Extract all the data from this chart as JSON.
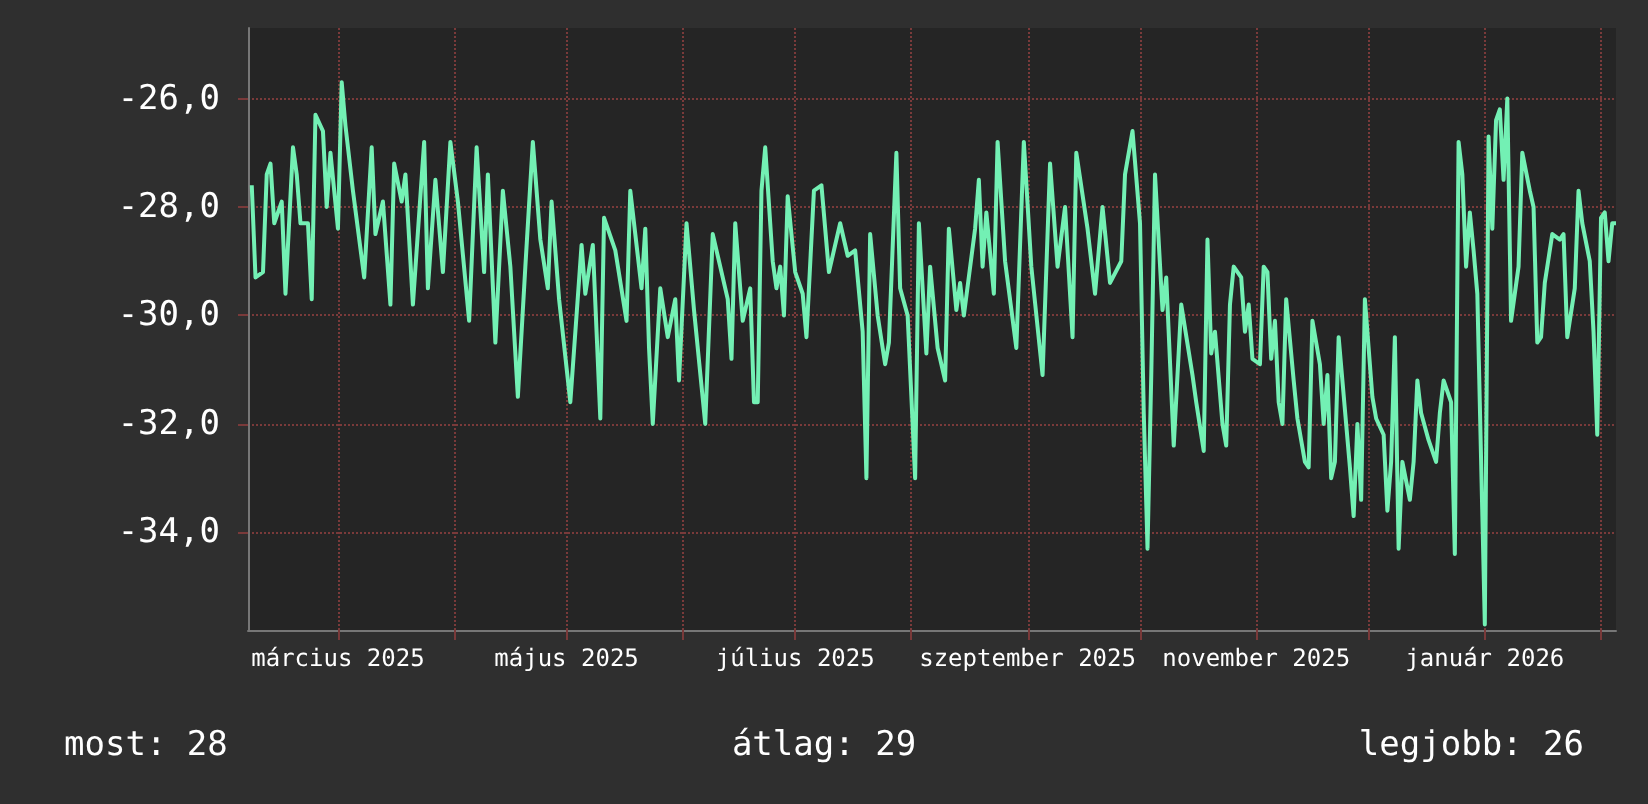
{
  "chart_data": {
    "type": "line",
    "x": [
      "2025-02-06",
      "2025-02-07",
      "2025-02-09",
      "2025-02-10",
      "2025-02-11",
      "2025-02-12",
      "2025-02-14",
      "2025-02-15",
      "2025-02-17",
      "2025-02-18",
      "2025-02-19",
      "2025-02-21",
      "2025-02-22",
      "2025-02-23",
      "2025-02-25",
      "2025-02-26",
      "2025-02-27",
      "2025-03-01",
      "2025-03-02",
      "2025-03-03",
      "2025-03-05",
      "2025-03-08",
      "2025-03-10",
      "2025-03-11",
      "2025-03-13",
      "2025-03-15",
      "2025-03-16",
      "2025-03-18",
      "2025-03-19",
      "2025-03-21",
      "2025-03-24",
      "2025-03-25",
      "2025-03-27",
      "2025-03-29",
      "2025-03-31",
      "2025-04-02",
      "2025-04-05",
      "2025-04-07",
      "2025-04-09",
      "2025-04-10",
      "2025-04-12",
      "2025-04-14",
      "2025-04-16",
      "2025-04-18",
      "2025-04-20",
      "2025-04-22",
      "2025-04-24",
      "2025-04-26",
      "2025-04-27",
      "2025-04-29",
      "2025-05-02",
      "2025-05-05",
      "2025-05-06",
      "2025-05-08",
      "2025-05-10",
      "2025-05-11",
      "2025-05-14",
      "2025-05-17",
      "2025-05-18",
      "2025-05-21",
      "2025-05-22",
      "2025-05-23",
      "2025-05-24",
      "2025-05-26",
      "2025-05-28",
      "2025-05-30",
      "2025-05-31",
      "2025-06-02",
      "2025-06-04",
      "2025-06-07",
      "2025-06-09",
      "2025-06-13",
      "2025-06-14",
      "2025-06-15",
      "2025-06-17",
      "2025-06-19",
      "2025-06-20",
      "2025-06-21",
      "2025-06-22",
      "2025-06-23",
      "2025-06-25",
      "2025-06-26",
      "2025-06-27",
      "2025-06-28",
      "2025-06-29",
      "2025-07-01",
      "2025-07-03",
      "2025-07-04",
      "2025-07-06",
      "2025-07-08",
      "2025-07-10",
      "2025-07-13",
      "2025-07-15",
      "2025-07-17",
      "2025-07-19",
      "2025-07-20",
      "2025-07-21",
      "2025-07-23",
      "2025-07-25",
      "2025-07-26",
      "2025-07-28",
      "2025-07-29",
      "2025-07-31",
      "2025-08-02",
      "2025-08-03",
      "2025-08-05",
      "2025-08-06",
      "2025-08-08",
      "2025-08-10",
      "2025-08-11",
      "2025-08-13",
      "2025-08-14",
      "2025-08-15",
      "2025-08-18",
      "2025-08-19",
      "2025-08-20",
      "2025-08-21",
      "2025-08-23",
      "2025-08-24",
      "2025-08-26",
      "2025-08-29",
      "2025-08-31",
      "2025-09-02",
      "2025-09-05",
      "2025-09-07",
      "2025-09-09",
      "2025-09-11",
      "2025-09-13",
      "2025-09-14",
      "2025-09-17",
      "2025-09-19",
      "2025-09-21",
      "2025-09-23",
      "2025-09-26",
      "2025-09-27",
      "2025-09-29",
      "2025-10-01",
      "2025-10-02",
      "2025-10-03",
      "2025-10-04",
      "2025-10-05",
      "2025-10-07",
      "2025-10-08",
      "2025-10-10",
      "2025-10-12",
      "2025-10-15",
      "2025-10-16",
      "2025-10-18",
      "2025-10-19",
      "2025-10-20",
      "2025-10-21",
      "2025-10-23",
      "2025-10-24",
      "2025-10-25",
      "2025-10-26",
      "2025-10-28",
      "2025-10-29",
      "2025-10-30",
      "2025-10-31",
      "2025-11-02",
      "2025-11-03",
      "2025-11-04",
      "2025-11-05",
      "2025-11-06",
      "2025-11-07",
      "2025-11-08",
      "2025-11-09",
      "2025-11-11",
      "2025-11-12",
      "2025-11-14",
      "2025-11-15",
      "2025-11-16",
      "2025-11-18",
      "2025-11-19",
      "2025-11-20",
      "2025-11-21",
      "2025-11-22",
      "2025-11-23",
      "2025-11-25",
      "2025-11-26",
      "2025-11-27",
      "2025-11-28",
      "2025-11-29",
      "2025-11-30",
      "2025-12-02",
      "2025-12-03",
      "2025-12-05",
      "2025-12-06",
      "2025-12-07",
      "2025-12-08",
      "2025-12-09",
      "2025-12-10",
      "2025-12-12",
      "2025-12-13",
      "2025-12-14",
      "2025-12-15",
      "2025-12-17",
      "2025-12-19",
      "2025-12-20",
      "2025-12-21",
      "2025-12-23",
      "2025-12-24",
      "2025-12-25",
      "2025-12-26",
      "2025-12-27",
      "2025-12-28",
      "2025-12-29",
      "2025-12-30",
      "2026-01-01",
      "2026-01-02",
      "2026-01-03",
      "2026-01-04",
      "2026-01-05",
      "2026-01-06",
      "2026-01-07",
      "2026-01-08",
      "2026-01-10",
      "2026-01-11",
      "2026-01-13",
      "2026-01-14",
      "2026-01-15",
      "2026-01-16",
      "2026-01-17",
      "2026-01-19",
      "2026-01-21",
      "2026-01-22",
      "2026-01-23",
      "2026-01-25",
      "2026-01-26",
      "2026-01-27",
      "2026-01-29",
      "2026-01-30",
      "2026-01-31",
      "2026-02-01",
      "2026-02-02",
      "2026-02-03",
      "2026-02-04",
      "2026-02-05"
    ],
    "values": [
      -27.6,
      -29.3,
      -29.2,
      -27.4,
      -27.2,
      -28.3,
      -27.9,
      -29.6,
      -26.9,
      -27.4,
      -28.3,
      -28.3,
      -29.7,
      -26.3,
      -26.6,
      -28.0,
      -27.0,
      -28.4,
      -25.7,
      -26.5,
      -27.7,
      -29.3,
      -26.9,
      -28.5,
      -27.9,
      -29.8,
      -27.2,
      -27.9,
      -27.4,
      -29.8,
      -26.8,
      -29.5,
      -27.5,
      -29.2,
      -26.8,
      -27.9,
      -30.1,
      -26.9,
      -29.2,
      -27.4,
      -30.5,
      -27.7,
      -29.1,
      -31.5,
      -29.1,
      -26.8,
      -28.6,
      -29.5,
      -27.9,
      -29.7,
      -31.6,
      -28.7,
      -29.6,
      -28.7,
      -31.9,
      -28.2,
      -28.8,
      -30.1,
      -27.7,
      -29.5,
      -28.4,
      -30.6,
      -32.0,
      -29.5,
      -30.4,
      -29.7,
      -31.2,
      -28.3,
      -29.9,
      -32.0,
      -28.5,
      -29.7,
      -30.8,
      -28.3,
      -30.1,
      -29.5,
      -31.6,
      -31.6,
      -27.7,
      -26.9,
      -29.0,
      -29.5,
      -29.1,
      -30.0,
      -27.8,
      -29.2,
      -29.6,
      -30.4,
      -27.7,
      -27.6,
      -29.2,
      -28.3,
      -28.9,
      -28.8,
      -30.3,
      -33.0,
      -28.5,
      -30.0,
      -30.9,
      -30.5,
      -27.0,
      -29.5,
      -30.0,
      -33.0,
      -28.3,
      -30.7,
      -29.1,
      -30.6,
      -31.2,
      -28.4,
      -29.9,
      -29.4,
      -30.0,
      -28.4,
      -27.5,
      -29.1,
      -28.1,
      -29.6,
      -26.8,
      -29.0,
      -30.6,
      -26.8,
      -29.1,
      -31.1,
      -27.2,
      -29.1,
      -28.0,
      -30.4,
      -27.0,
      -28.4,
      -29.6,
      -28.0,
      -29.4,
      -29.0,
      -27.4,
      -26.6,
      -28.3,
      -31.8,
      -34.3,
      -31.1,
      -27.4,
      -29.9,
      -29.3,
      -32.4,
      -29.8,
      -31.1,
      -31.6,
      -32.5,
      -28.6,
      -30.7,
      -30.3,
      -32.0,
      -32.4,
      -29.8,
      -29.1,
      -29.3,
      -30.3,
      -29.8,
      -30.8,
      -30.9,
      -29.1,
      -29.2,
      -30.8,
      -30.1,
      -31.6,
      -32.0,
      -29.7,
      -31.2,
      -31.9,
      -32.7,
      -32.8,
      -30.1,
      -30.9,
      -32.0,
      -31.1,
      -33.0,
      -32.7,
      -30.4,
      -32.0,
      -32.8,
      -33.7,
      -32.0,
      -33.4,
      -29.7,
      -31.5,
      -31.9,
      -32.2,
      -33.6,
      -32.7,
      -30.4,
      -34.3,
      -32.7,
      -33.4,
      -32.7,
      -31.2,
      -31.8,
      -32.3,
      -32.7,
      -31.8,
      -31.2,
      -31.6,
      -34.4,
      -26.8,
      -27.4,
      -29.1,
      -28.1,
      -28.8,
      -29.6,
      -35.7,
      -26.7,
      -28.4,
      -26.4,
      -26.2,
      -27.5,
      -26.0,
      -30.1,
      -29.1,
      -27.0,
      -27.7,
      -28.0,
      -30.5,
      -30.4,
      -29.4,
      -28.5,
      -28.6,
      -28.5,
      -30.4,
      -29.5,
      -27.7,
      -28.3,
      -29.0,
      -30.3,
      -32.2,
      -28.2,
      -28.1,
      -29.0,
      -28.3,
      -28.3
    ],
    "color": "#73f0b4",
    "xlim": [
      "2025-02-05",
      "2026-02-05"
    ],
    "xticks": [
      {
        "value": "2025-03-01",
        "label": "március 2025"
      },
      {
        "value": "2025-04-01",
        "label": null
      },
      {
        "value": "2025-05-01",
        "label": "május 2025"
      },
      {
        "value": "2025-06-01",
        "label": null
      },
      {
        "value": "2025-07-01",
        "label": "július 2025"
      },
      {
        "value": "2025-08-01",
        "label": null
      },
      {
        "value": "2025-09-01",
        "label": "szeptember 2025"
      },
      {
        "value": "2025-10-01",
        "label": null
      },
      {
        "value": "2025-11-01",
        "label": "november 2025"
      },
      {
        "value": "2025-12-01",
        "label": null
      },
      {
        "value": "2026-01-01",
        "label": "január 2026"
      },
      {
        "value": "2026-02-01",
        "label": null
      }
    ],
    "ylim": [
      -35.8,
      -24.7
    ],
    "yticks": [
      {
        "value": -34,
        "label": "-34,0"
      },
      {
        "value": -32,
        "label": "-32,0"
      },
      {
        "value": -30,
        "label": "-30,0"
      },
      {
        "value": -28,
        "label": "-28,0"
      },
      {
        "value": -26,
        "label": "-26,0"
      }
    ],
    "grid": true,
    "annotations": [
      "most: 28",
      "átlag: 29",
      "legjobb: 26"
    ]
  }
}
